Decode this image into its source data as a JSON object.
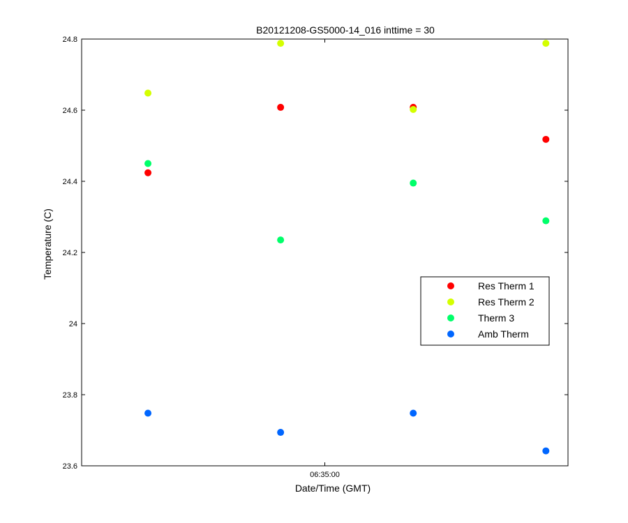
{
  "chart_data": {
    "type": "scatter",
    "title": "B20121208-GS5000-14_016 inttime = 30",
    "xlabel": "Date/Time (GMT)",
    "ylabel": "Temperature (C)",
    "ylim": [
      23.6,
      24.8
    ],
    "yticks": [
      23.6,
      23.8,
      24,
      24.2,
      24.4,
      24.6,
      24.8
    ],
    "ytick_labels": [
      "23.6",
      "23.8",
      "24",
      "24.2",
      "24.4",
      "24.6",
      "24.8"
    ],
    "xlim": [
      "06:34:05",
      "06:35:55"
    ],
    "xticks": [
      "06:35:00"
    ],
    "xtick_labels": [
      "06:35:00"
    ],
    "x": [
      "06:34:20",
      "06:34:50",
      "06:35:20",
      "06:35:50"
    ],
    "grid": false,
    "legend_position": "right",
    "series": [
      {
        "name": "Res Therm 1",
        "color": "#ff0000",
        "values": [
          24.424,
          24.608,
          24.608,
          24.518
        ]
      },
      {
        "name": "Res Therm 2",
        "color": "#d4ff00",
        "values": [
          24.648,
          24.788,
          24.602,
          24.788
        ]
      },
      {
        "name": "Therm 3",
        "color": "#00ff6a",
        "values": [
          24.45,
          24.235,
          24.395,
          24.289
        ]
      },
      {
        "name": "Amb Therm",
        "color": "#0066ff",
        "values": [
          23.748,
          23.694,
          23.748,
          23.642
        ]
      }
    ]
  }
}
